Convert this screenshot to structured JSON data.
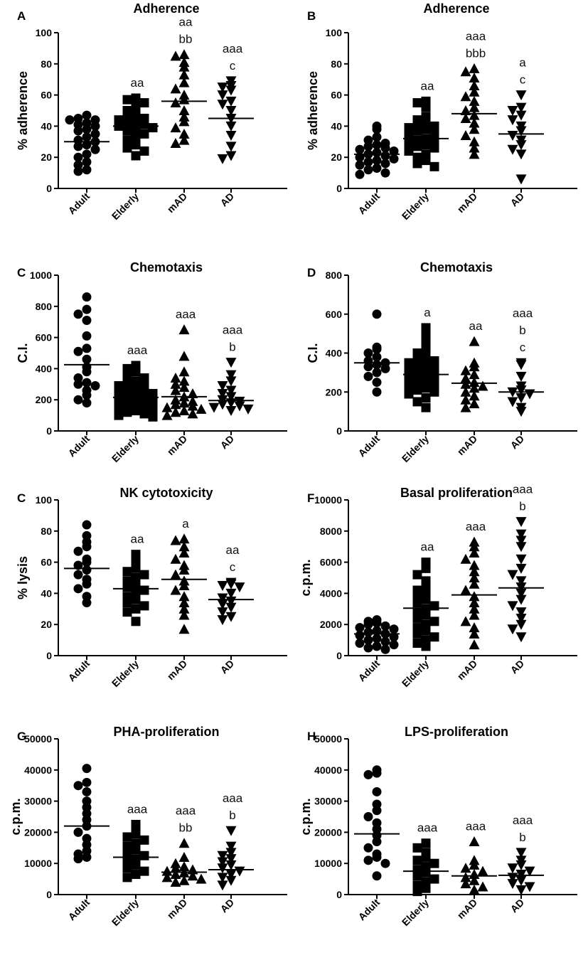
{
  "figure": {
    "categories": [
      "Adult",
      "Elderly",
      "mAD",
      "AD"
    ]
  },
  "chart_data": [
    {
      "type": "scatter",
      "panel": "A",
      "title": "Adherence",
      "ylabel": "% adherence",
      "ylim": [
        0,
        100
      ],
      "yticks": [
        0,
        20,
        40,
        60,
        80,
        100
      ],
      "categories": [
        "Adult",
        "Elderly",
        "mAD",
        "AD"
      ],
      "markers": [
        "circle",
        "square",
        "triangle-up",
        "triangle-down"
      ],
      "series": [
        {
          "name": "Adult",
          "mean": 30,
          "annotation": [],
          "values": [
            47,
            45,
            44,
            44,
            42,
            41,
            40,
            38,
            37,
            35,
            33,
            31,
            30,
            28,
            27,
            25,
            22,
            20,
            17,
            15,
            12,
            11
          ]
        },
        {
          "name": "Elderly",
          "mean": 40,
          "annotation": [
            "aa"
          ],
          "values": [
            58,
            57,
            55,
            53,
            50,
            48,
            47,
            45,
            44,
            43,
            42,
            41,
            40,
            39,
            38,
            37,
            35,
            33,
            31,
            28,
            26,
            24,
            21
          ]
        },
        {
          "name": "mAD",
          "mean": 56,
          "annotation": [
            "aa",
            "bb"
          ],
          "values": [
            86,
            85,
            81,
            78,
            73,
            68,
            64,
            60,
            57,
            55,
            50,
            46,
            43,
            39,
            35,
            31,
            29
          ]
        },
        {
          "name": "AD",
          "mean": 45,
          "annotation": [
            "aaa",
            "c"
          ],
          "values": [
            69,
            66,
            65,
            63,
            60,
            56,
            54,
            50,
            45,
            40,
            34,
            27,
            21,
            19
          ]
        }
      ]
    },
    {
      "type": "scatter",
      "panel": "B",
      "title": "Adherence",
      "ylabel": "% adherence",
      "ylim": [
        0,
        100
      ],
      "yticks": [
        0,
        20,
        40,
        60,
        80,
        100
      ],
      "categories": [
        "Adult",
        "Elderly",
        "mAD",
        "AD"
      ],
      "markers": [
        "circle",
        "square",
        "triangle-up",
        "triangle-down"
      ],
      "series": [
        {
          "name": "Adult",
          "mean": 22,
          "annotation": [],
          "values": [
            40,
            38,
            33,
            31,
            29,
            28,
            27,
            26,
            25,
            24,
            23,
            22,
            21,
            20,
            19,
            18,
            17,
            16,
            15,
            13,
            12,
            10,
            9
          ]
        },
        {
          "name": "Elderly",
          "mean": 32,
          "annotation": [
            "aa"
          ],
          "values": [
            56,
            55,
            52,
            46,
            44,
            43,
            42,
            40,
            39,
            38,
            37,
            35,
            34,
            32,
            31,
            30,
            29,
            28,
            27,
            26,
            24,
            22,
            20,
            18,
            16,
            14
          ]
        },
        {
          "name": "mAD",
          "mean": 48,
          "annotation": [
            "aaa",
            "bbb"
          ],
          "values": [
            77,
            75,
            71,
            66,
            62,
            59,
            56,
            52,
            50,
            47,
            45,
            42,
            38,
            34,
            30,
            26,
            22
          ]
        },
        {
          "name": "AD",
          "mean": 35,
          "annotation": [
            "a",
            "c"
          ],
          "values": [
            60,
            52,
            50,
            47,
            44,
            40,
            37,
            34,
            31,
            28,
            25,
            22,
            6
          ]
        }
      ]
    },
    {
      "type": "scatter",
      "panel": "C",
      "title": "Chemotaxis",
      "ylabel": "C.I.",
      "ylim": [
        0,
        1000
      ],
      "yticks": [
        0,
        200,
        400,
        600,
        800,
        1000
      ],
      "categories": [
        "Adult",
        "Elderly",
        "mAD",
        "AD"
      ],
      "markers": [
        "circle",
        "square",
        "triangle-up",
        "triangle-down"
      ],
      "series": [
        {
          "name": "Adult",
          "mean": 425,
          "annotation": [],
          "values": [
            860,
            780,
            750,
            710,
            610,
            530,
            510,
            460,
            410,
            380,
            340,
            310,
            300,
            290,
            260,
            230,
            200,
            180
          ]
        },
        {
          "name": "Elderly",
          "mean": 215,
          "annotation": [
            "aaa"
          ],
          "values": [
            420,
            400,
            380,
            360,
            340,
            320,
            310,
            300,
            290,
            280,
            270,
            260,
            250,
            240,
            230,
            220,
            210,
            200,
            190,
            180,
            170,
            160,
            150,
            140,
            130,
            120,
            110,
            100,
            90
          ]
        },
        {
          "name": "mAD",
          "mean": 220,
          "annotation": [
            "aaa"
          ],
          "values": [
            650,
            480,
            380,
            340,
            320,
            300,
            280,
            260,
            240,
            220,
            200,
            190,
            180,
            170,
            160,
            150,
            140,
            130,
            120,
            110,
            100
          ]
        },
        {
          "name": "AD",
          "mean": 195,
          "annotation": [
            "aaa",
            "b"
          ],
          "values": [
            440,
            360,
            320,
            290,
            260,
            240,
            220,
            200,
            190,
            180,
            170,
            160,
            150,
            140,
            130
          ]
        }
      ]
    },
    {
      "type": "scatter",
      "panel": "D",
      "title": "Chemotaxis",
      "ylabel": "C.I.",
      "ylim": [
        0,
        800
      ],
      "yticks": [
        0,
        200,
        400,
        600,
        800
      ],
      "categories": [
        "Adult",
        "Elderly",
        "mAD",
        "AD"
      ],
      "markers": [
        "circle",
        "square",
        "triangle-up",
        "triangle-down"
      ],
      "series": [
        {
          "name": "Adult",
          "mean": 350,
          "annotation": [],
          "values": [
            600,
            430,
            420,
            400,
            380,
            360,
            350,
            340,
            330,
            320,
            300,
            280,
            250,
            200
          ]
        },
        {
          "name": "Elderly",
          "mean": 290,
          "annotation": [
            "a"
          ],
          "values": [
            530,
            490,
            450,
            420,
            400,
            380,
            370,
            360,
            350,
            340,
            330,
            320,
            310,
            300,
            290,
            280,
            270,
            260,
            250,
            240,
            230,
            220,
            210,
            200,
            190,
            170,
            150,
            120
          ]
        },
        {
          "name": "mAD",
          "mean": 245,
          "annotation": [
            "aa"
          ],
          "values": [
            460,
            350,
            330,
            310,
            290,
            270,
            250,
            240,
            230,
            220,
            200,
            180,
            160,
            140,
            120
          ]
        },
        {
          "name": "AD",
          "mean": 200,
          "annotation": [
            "aaa",
            "b",
            "c"
          ],
          "values": [
            350,
            340,
            280,
            230,
            210,
            200,
            190,
            170,
            150,
            120,
            100
          ]
        }
      ]
    },
    {
      "type": "scatter",
      "panel": "C",
      "title": "NK cytotoxicity",
      "ylabel": "% lysis",
      "ylim": [
        0,
        100
      ],
      "yticks": [
        0,
        20,
        40,
        60,
        80,
        100
      ],
      "categories": [
        "Adult",
        "Elderly",
        "mAD",
        "AD"
      ],
      "markers": [
        "circle",
        "square",
        "triangle-up",
        "triangle-down"
      ],
      "series": [
        {
          "name": "Adult",
          "mean": 56,
          "annotation": [],
          "values": [
            84,
            77,
            73,
            70,
            67,
            62,
            60,
            58,
            55,
            52,
            49,
            46,
            43,
            38,
            34
          ]
        },
        {
          "name": "Elderly",
          "mean": 43,
          "annotation": [
            "aa"
          ],
          "values": [
            65,
            60,
            56,
            54,
            52,
            50,
            48,
            46,
            44,
            42,
            40,
            38,
            36,
            34,
            32,
            30,
            28,
            22
          ]
        },
        {
          "name": "mAD",
          "mean": 49,
          "annotation": [
            "a"
          ],
          "values": [
            75,
            74,
            70,
            66,
            62,
            58,
            55,
            52,
            48,
            45,
            42,
            38,
            34,
            30,
            26,
            17
          ]
        },
        {
          "name": "AD",
          "mean": 36,
          "annotation": [
            "aa",
            "c"
          ],
          "values": [
            47,
            46,
            45,
            44,
            40,
            37,
            35,
            33,
            31,
            28,
            25,
            23
          ]
        }
      ]
    },
    {
      "type": "scatter",
      "panel": "F",
      "title": "Basal proliferation",
      "ylabel": "c.p.m.",
      "ylim": [
        0,
        10000
      ],
      "yticks": [
        0,
        2000,
        4000,
        6000,
        8000,
        10000
      ],
      "categories": [
        "Adult",
        "Elderly",
        "mAD",
        "AD"
      ],
      "markers": [
        "circle",
        "square",
        "triangle-up",
        "triangle-down"
      ],
      "series": [
        {
          "name": "Adult",
          "mean": 1400,
          "annotation": [],
          "values": [
            2300,
            2200,
            2100,
            2000,
            1900,
            1800,
            1700,
            1600,
            1500,
            1400,
            1300,
            1200,
            1100,
            1000,
            900,
            800,
            700,
            600,
            500,
            400
          ]
        },
        {
          "name": "Elderly",
          "mean": 3050,
          "annotation": [
            "aa"
          ],
          "values": [
            6000,
            5600,
            5200,
            4800,
            4400,
            4200,
            4000,
            3800,
            3600,
            3400,
            3200,
            3000,
            2800,
            2600,
            2400,
            2200,
            2000,
            1800,
            1600,
            1400,
            1200,
            1000,
            800,
            600
          ]
        },
        {
          "name": "mAD",
          "mean": 3900,
          "annotation": [
            "aaa"
          ],
          "values": [
            7300,
            7000,
            6600,
            6200,
            5800,
            5400,
            5000,
            4600,
            4200,
            3800,
            3400,
            3000,
            2600,
            2200,
            1800,
            1400,
            700
          ]
        },
        {
          "name": "AD",
          "mean": 4350,
          "annotation": [
            "aaa",
            "b"
          ],
          "values": [
            8600,
            7800,
            7400,
            7000,
            6200,
            5600,
            5200,
            4800,
            4400,
            4000,
            3600,
            3200,
            2800,
            2400,
            2000,
            1700,
            1200
          ]
        }
      ]
    },
    {
      "type": "scatter",
      "panel": "G",
      "title": "PHA-proliferation",
      "ylabel": "c.p.m.",
      "ylim": [
        0,
        50000
      ],
      "yticks": [
        0,
        10000,
        20000,
        30000,
        40000,
        50000
      ],
      "categories": [
        "Adult",
        "Elderly",
        "mAD",
        "AD"
      ],
      "markers": [
        "circle",
        "square",
        "triangle-up",
        "triangle-down"
      ],
      "series": [
        {
          "name": "Adult",
          "mean": 22000,
          "annotation": [],
          "values": [
            40500,
            36000,
            35000,
            33000,
            30000,
            28000,
            26000,
            24000,
            22000,
            20000,
            18000,
            16000,
            14000,
            13000,
            12000,
            11500
          ]
        },
        {
          "name": "Elderly",
          "mean": 12000,
          "annotation": [
            "aaa"
          ],
          "values": [
            22500,
            21000,
            19500,
            18500,
            17500,
            16500,
            15500,
            14500,
            13500,
            12500,
            11500,
            10500,
            9500,
            8500,
            7500,
            6500,
            5500
          ]
        },
        {
          "name": "mAD",
          "mean": 7200,
          "annotation": [
            "aaa",
            "bb"
          ],
          "values": [
            16500,
            12000,
            10000,
            9000,
            8500,
            8000,
            7500,
            7000,
            6500,
            6000,
            5500,
            5000,
            4500,
            4000
          ]
        },
        {
          "name": "AD",
          "mean": 8000,
          "annotation": [
            "aaa",
            "b"
          ],
          "values": [
            20500,
            15500,
            13500,
            12500,
            11500,
            10500,
            9500,
            8500,
            7500,
            6500,
            5500,
            4500,
            3000
          ]
        }
      ]
    },
    {
      "type": "scatter",
      "panel": "H",
      "title": "LPS-proliferation",
      "ylabel": "c.p.m.",
      "ylim": [
        0,
        50000
      ],
      "yticks": [
        0,
        10000,
        20000,
        30000,
        40000,
        50000
      ],
      "categories": [
        "Adult",
        "Elderly",
        "mAD",
        "AD"
      ],
      "markers": [
        "circle",
        "square",
        "triangle-up",
        "triangle-down"
      ],
      "series": [
        {
          "name": "Adult",
          "mean": 19500,
          "annotation": [],
          "values": [
            40000,
            39000,
            38500,
            33000,
            29000,
            27000,
            25000,
            23000,
            21000,
            19000,
            17000,
            15000,
            13000,
            12000,
            11000,
            10000,
            6000
          ]
        },
        {
          "name": "Elderly",
          "mean": 7500,
          "annotation": [
            "aaa"
          ],
          "values": [
            16500,
            15000,
            13500,
            12000,
            11000,
            10000,
            9000,
            8000,
            7000,
            6000,
            5000,
            4000,
            3000,
            2000,
            1000
          ]
        },
        {
          "name": "mAD",
          "mean": 6000,
          "annotation": [
            "aaa"
          ],
          "values": [
            17000,
            11000,
            9500,
            8500,
            7500,
            6500,
            5500,
            4500,
            3500,
            2500,
            1500
          ]
        },
        {
          "name": "AD",
          "mean": 6200,
          "annotation": [
            "aaa",
            "b"
          ],
          "values": [
            13500,
            11000,
            9500,
            8500,
            7500,
            6500,
            5500,
            4500,
            3500,
            2500,
            1500
          ]
        }
      ]
    }
  ]
}
